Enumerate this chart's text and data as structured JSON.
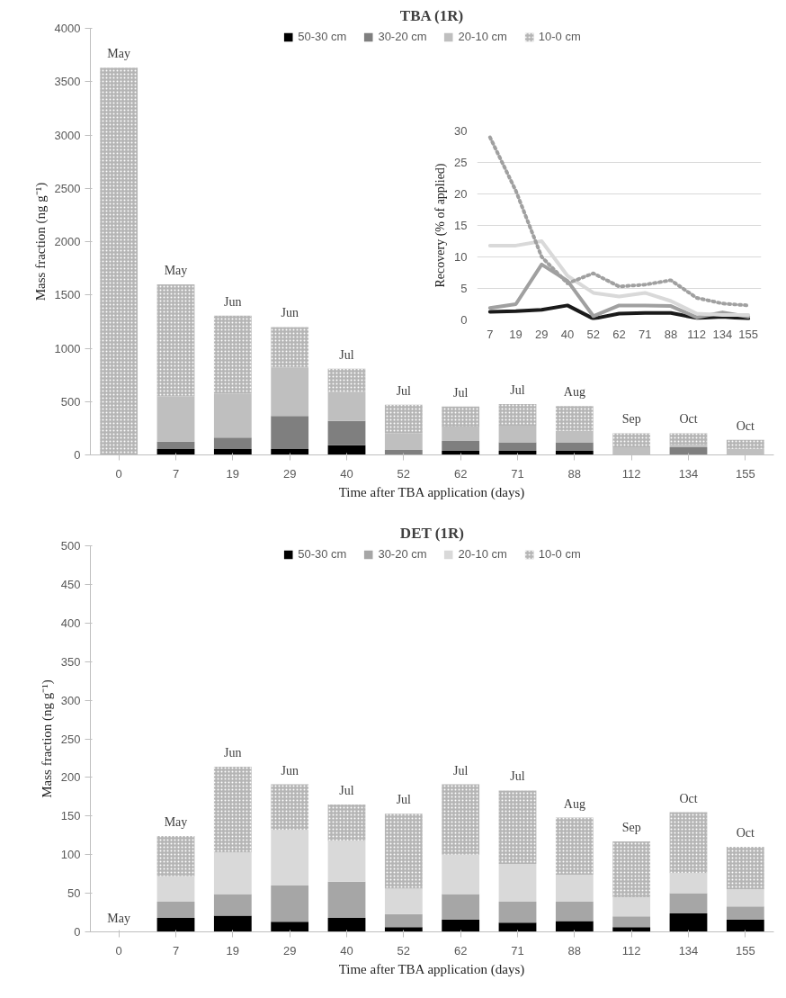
{
  "chart_data": [
    {
      "type": "bar",
      "title": "TBA (1R)",
      "xlabel": "Time after TBA application (days)",
      "ylabel": "Mass fraction (ng g⁻¹)",
      "stacked": true,
      "legend": "top",
      "grid": false,
      "categories": [
        "0",
        "7",
        "19",
        "29",
        "40",
        "52",
        "62",
        "71",
        "88",
        "112",
        "134",
        "155"
      ],
      "ylim": [
        0,
        4000
      ],
      "yticks": [
        0,
        500,
        1000,
        1500,
        2000,
        2500,
        3000,
        3500,
        4000
      ],
      "series": [
        {
          "name": "50-30 cm",
          "color": "#000000",
          "values": [
            0,
            55,
            55,
            55,
            90,
            0,
            38,
            38,
            38,
            0,
            0,
            0
          ]
        },
        {
          "name": "30-20 cm",
          "color": "#7f7f7f",
          "values": [
            0,
            70,
            108,
            311,
            229,
            47,
            93,
            81,
            81,
            0,
            72,
            0
          ]
        },
        {
          "name": "20-10 cm",
          "color": "#bfbfbf",
          "values": [
            0,
            423,
            413,
            454,
            269,
            157,
            135,
            156,
            106,
            72,
            22,
            56
          ]
        },
        {
          "name": "10-0 cm",
          "color": "#b5b5b5",
          "line_style": "dotted",
          "values": [
            3630,
            1052,
            729,
            379,
            219,
            266,
            188,
            201,
            232,
            131,
            109,
            85
          ]
        }
      ],
      "annotations": [
        {
          "text": "May",
          "x": "0",
          "y": 3630
        },
        {
          "text": "May",
          "x": "7",
          "y": 1600
        },
        {
          "text": "Jun",
          "x": "19",
          "y": 1305
        },
        {
          "text": "Jun",
          "x": "29",
          "y": 1199
        },
        {
          "text": "Jul",
          "x": "40",
          "y": 807
        },
        {
          "text": "Jul",
          "x": "52",
          "y": 470
        },
        {
          "text": "Jul",
          "x": "62",
          "y": 454
        },
        {
          "text": "Jul",
          "x": "71",
          "y": 476
        },
        {
          "text": "Aug",
          "x": "88",
          "y": 457
        },
        {
          "text": "Sep",
          "x": "112",
          "y": 203
        },
        {
          "text": "Oct",
          "x": "134",
          "y": 203
        },
        {
          "text": "Oct",
          "x": "155",
          "y": 141
        }
      ]
    },
    {
      "type": "line",
      "ylabel": "Recovery (% of applied)",
      "grid": "y",
      "legend": false,
      "categories": [
        "7",
        "19",
        "29",
        "40",
        "52",
        "62",
        "71",
        "88",
        "112",
        "134",
        "155"
      ],
      "ylim": [
        0,
        30
      ],
      "yticks": [
        0,
        5,
        10,
        15,
        20,
        25,
        30
      ],
      "series": [
        {
          "color": "#1a1a1a",
          "line_style": "solid",
          "values": [
            1.3,
            1.4,
            1.6,
            2.3,
            0.2,
            1.0,
            1.1,
            1.1,
            0.3,
            0.5,
            0.2
          ]
        },
        {
          "color": "#a0a0a0",
          "line_style": "solid",
          "values": [
            1.9,
            2.5,
            8.8,
            6.2,
            0.6,
            2.3,
            2.3,
            2.2,
            0.4,
            1.2,
            0.5
          ]
        },
        {
          "color": "#d9d9d9",
          "line_style": "solid",
          "values": [
            11.8,
            11.8,
            12.5,
            7.0,
            4.3,
            3.7,
            4.3,
            3.0,
            1.0,
            0.8,
            0.8
          ]
        },
        {
          "color": "#a0a0a0",
          "line_style": "dotted",
          "values": [
            29,
            20.5,
            10,
            5.8,
            7.4,
            5.3,
            5.6,
            6.3,
            3.5,
            2.6,
            2.3
          ]
        }
      ]
    },
    {
      "type": "bar",
      "title": "DET (1R)",
      "xlabel": "Time after TBA application (days)",
      "ylabel": "Mass fraction (ng g⁻¹)",
      "stacked": true,
      "legend": "top",
      "grid": false,
      "categories": [
        "0",
        "7",
        "19",
        "29",
        "40",
        "52",
        "62",
        "71",
        "88",
        "112",
        "134",
        "155"
      ],
      "ylim": [
        0,
        500
      ],
      "yticks": [
        0,
        50,
        100,
        150,
        200,
        250,
        300,
        350,
        400,
        450,
        500
      ],
      "series": [
        {
          "name": "50-30 cm",
          "color": "#000000",
          "values": [
            0,
            18,
            21,
            13,
            18,
            6,
            16,
            12,
            14,
            6,
            24,
            16
          ]
        },
        {
          "name": "30-20 cm",
          "color": "#a6a6a6",
          "values": [
            0,
            21,
            28,
            47,
            47,
            17,
            33,
            27,
            25,
            14,
            26,
            17
          ]
        },
        {
          "name": "20-10 cm",
          "color": "#d9d9d9",
          "values": [
            0,
            33,
            54,
            72,
            53,
            33,
            51,
            49,
            35,
            25,
            26,
            22
          ]
        },
        {
          "name": "10-0 cm",
          "color": "#b5b5b5",
          "line_style": "dotted",
          "values": [
            0,
            52,
            111,
            59,
            47,
            97,
            91,
            95,
            74,
            72,
            79,
            55
          ]
        }
      ],
      "annotations": [
        {
          "text": "May",
          "x": "0",
          "y": 0
        },
        {
          "text": "May",
          "x": "7",
          "y": 124
        },
        {
          "text": "Jun",
          "x": "19",
          "y": 214
        },
        {
          "text": "Jun",
          "x": "29",
          "y": 191
        },
        {
          "text": "Jul",
          "x": "40",
          "y": 165
        },
        {
          "text": "Jul",
          "x": "52",
          "y": 153
        },
        {
          "text": "Jul",
          "x": "62",
          "y": 191
        },
        {
          "text": "Jul",
          "x": "71",
          "y": 183
        },
        {
          "text": "Aug",
          "x": "88",
          "y": 148
        },
        {
          "text": "Sep",
          "x": "112",
          "y": 117
        },
        {
          "text": "Oct",
          "x": "134",
          "y": 155
        },
        {
          "text": "Oct",
          "x": "155",
          "y": 110
        }
      ]
    }
  ]
}
